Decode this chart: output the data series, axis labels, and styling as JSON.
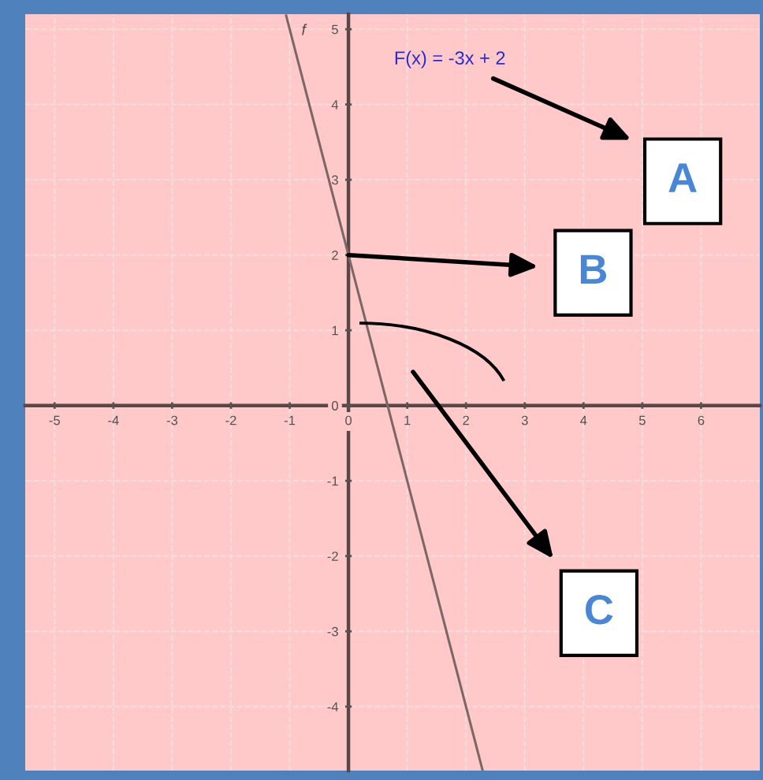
{
  "chart_data": {
    "type": "line",
    "xlim": [
      -5.5,
      7
    ],
    "ylim": [
      -4.85,
      5.2
    ],
    "xticks": [
      -5,
      -4,
      -3,
      -2,
      -1,
      0,
      1,
      2,
      3,
      4,
      5,
      6
    ],
    "yticks": [
      -4,
      -3,
      -2,
      -1,
      0,
      1,
      2,
      3,
      4,
      5
    ],
    "grid": true,
    "series": [
      {
        "name": "f",
        "color": "#7d6666",
        "x": [
          -1.06,
          2.28
        ],
        "values": [
          5.18,
          -4.84
        ]
      }
    ],
    "annotations": [
      "F(x) = -3x + 2",
      "A",
      {
        "text": "B",
        "x": 0,
        "y": 2
      },
      "C"
    ]
  }
}
